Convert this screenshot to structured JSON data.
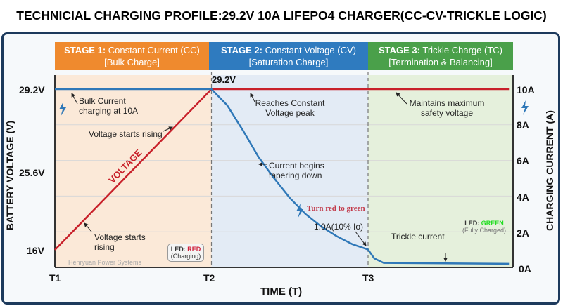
{
  "title": "TECHNICIAL CHARGING PROFILE:29.2V 10A LIFEPO4 CHARGER(CC-CV-TRICKLE LOGIC)",
  "stages": [
    {
      "label": "STAGE 1:",
      "name": "Constant Current (CC)",
      "sub": "[Bulk Charge]",
      "color": "#ef8a2e"
    },
    {
      "label": "STAGE 2:",
      "name": "Constant Voltage (CV)",
      "sub": "[Saturation Charge]",
      "color": "#2f7bbf"
    },
    {
      "label": "STAGE 3:",
      "name": "Trickle Charge (TC)",
      "sub": "[Termination & Balancing]",
      "color": "#4aa04a"
    }
  ],
  "chart_data": {
    "type": "line",
    "xlabel": "TIME (T)",
    "ylabel": "BATTERY VOLTAGE (V)",
    "y2label": "CHARGING CURRENT (A)",
    "x_ticks": [
      "T1",
      "T2",
      "T3"
    ],
    "y_ticks": [
      "29.2V",
      "25.6V",
      "16V"
    ],
    "y2_ticks": [
      "10A",
      "8A",
      "6A",
      "4A",
      "2A",
      "0A"
    ],
    "y2lim": [
      0,
      10
    ],
    "ylim": [
      16,
      29.2
    ],
    "grid": true,
    "series": [
      {
        "name": "VOLTAGE",
        "color": "#c8202a",
        "axis": "left",
        "points": [
          [
            1,
            16
          ],
          [
            2,
            29.2
          ],
          [
            3.9,
            29.2
          ]
        ]
      },
      {
        "color": "#2f78b8",
        "axis": "right",
        "points": [
          [
            1,
            10
          ],
          [
            2,
            10
          ],
          [
            2.1,
            9.1
          ],
          [
            2.2,
            7.7
          ],
          [
            2.3,
            6.2
          ],
          [
            2.4,
            5.0
          ],
          [
            2.5,
            3.9
          ],
          [
            2.6,
            3.0
          ],
          [
            2.7,
            2.3
          ],
          [
            2.8,
            1.75
          ],
          [
            2.9,
            1.3
          ],
          [
            3,
            1.0
          ],
          [
            3.04,
            0.5
          ],
          [
            3.1,
            0.25
          ],
          [
            3.9,
            0.2
          ]
        ]
      }
    ],
    "peak_label": "29.2V",
    "annotations": {
      "bulk": "Bulk Current charging at 10A",
      "rise_mid": "Voltage starts rising",
      "rise_low": "Voltage starts rising",
      "peak": "Reaches Constant Voltage peak",
      "taper": "Current begins tapering down",
      "turn": "Turn red to green",
      "cut": "1.0A(10% Io)",
      "maintain": "Maintains maximum safety voltage",
      "trickle": "Trickle current"
    }
  },
  "led1": {
    "prefix": "LED:",
    "color_word": "RED",
    "state": "(Charging)",
    "color": "#d0203a"
  },
  "led2": {
    "prefix": "LED:",
    "color_word": "GREEN",
    "state": "(Fully Charged)",
    "color": "#22dd22"
  },
  "watermark": "Henryuan Power Systems"
}
